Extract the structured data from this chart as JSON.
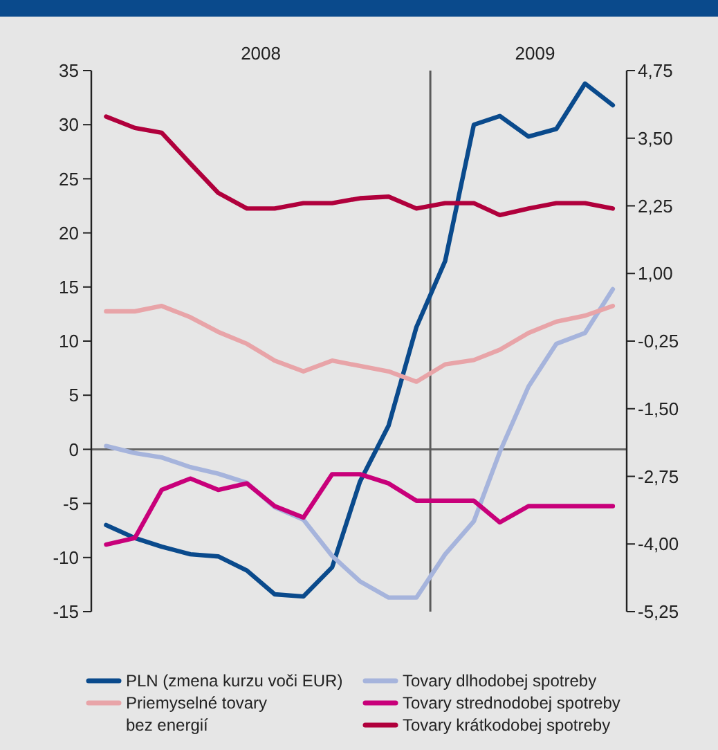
{
  "chart_data": {
    "type": "line",
    "x": [
      "2008-01",
      "2008-02",
      "2008-03",
      "2008-04",
      "2008-05",
      "2008-06",
      "2008-07",
      "2008-08",
      "2008-09",
      "2008-10",
      "2008-11",
      "2008-12",
      "2009-01",
      "2009-02",
      "2009-03",
      "2009-04",
      "2009-05",
      "2009-06",
      "2009-07"
    ],
    "xlim": [
      "2007-12-16",
      "2009-07-16"
    ],
    "xticks": [
      {
        "value": "2008-06-16",
        "label": "2008"
      },
      {
        "value": "2009-04-08",
        "label": "2009"
      }
    ],
    "ylim": [
      -15,
      35
    ],
    "yticks": [
      -15,
      -10,
      -5,
      0,
      5,
      10,
      15,
      20,
      25,
      30,
      35
    ],
    "y2lim": [
      -5.25,
      4.75
    ],
    "y2ticks": [
      {
        "value": -5.25,
        "label": "-5,25"
      },
      {
        "value": -4,
        "label": "-4,00"
      },
      {
        "value": -2.75,
        "label": "-2,75"
      },
      {
        "value": -1.5,
        "label": "-1,50"
      },
      {
        "value": -0.25,
        "label": "-0,25"
      },
      {
        "value": 1,
        "label": "1,00"
      },
      {
        "value": 2.25,
        "label": "2,25"
      },
      {
        "value": 3.5,
        "label": "3,50"
      },
      {
        "value": 4.75,
        "label": "4,75"
      }
    ],
    "ref_lines": [
      {
        "axis": "x",
        "value": "2008-12-16",
        "color": "#5a5a5a"
      }
    ],
    "legend": "bottom",
    "series": [
      {
        "name": "PLN (zmena kurzu voči EUR)",
        "color": "#0a4a8c",
        "values": [
          -7,
          -8.2,
          -9,
          -9.7,
          -9.9,
          -11.2,
          -13.4,
          -13.6,
          -10.9,
          -3,
          2.2,
          11.3,
          17.4,
          30,
          30.8,
          28.9,
          29.6,
          33.8,
          31.8
        ]
      },
      {
        "name": "Tovary dlhodobej spotreby",
        "color": "#a6b4dc",
        "axis": "y2",
        "values": [
          -2.19,
          -2.32,
          -2.4,
          -2.58,
          -2.7,
          -2.87,
          -3.32,
          -3.55,
          -4.22,
          -4.69,
          -4.99,
          -4.99,
          -4.19,
          -3.58,
          -2.3,
          -1.09,
          -0.3,
          -0.1,
          0.71
        ]
      },
      {
        "name": "Priemyselné tovary bez energií",
        "color": "#e8a4a8",
        "axis": "y2",
        "values": [
          0.3,
          0.3,
          0.4,
          0.19,
          -0.08,
          -0.3,
          -0.61,
          -0.81,
          -0.61,
          -0.71,
          -0.81,
          -1,
          -0.68,
          -0.6,
          -0.41,
          -0.1,
          0.11,
          0.22,
          0.4
        ]
      },
      {
        "name": "Tovary strednodobej spotreby",
        "color": "#c8007a",
        "axis": "y2",
        "values": [
          -4.01,
          -3.89,
          -3,
          -2.79,
          -3,
          -2.88,
          -3.3,
          -3.51,
          -2.71,
          -2.71,
          -2.88,
          -3.2,
          -3.2,
          -3.2,
          -3.6,
          -3.3,
          -3.3,
          -3.3,
          -3.3
        ]
      },
      {
        "name": "Tovary krátkodobej spotreby",
        "color": "#b0003c",
        "axis": "y2",
        "values": [
          3.9,
          3.69,
          3.6,
          3.03,
          2.49,
          2.2,
          2.2,
          2.3,
          2.3,
          2.39,
          2.42,
          2.2,
          2.3,
          2.3,
          2.08,
          2.2,
          2.3,
          2.3,
          2.2
        ]
      }
    ]
  }
}
